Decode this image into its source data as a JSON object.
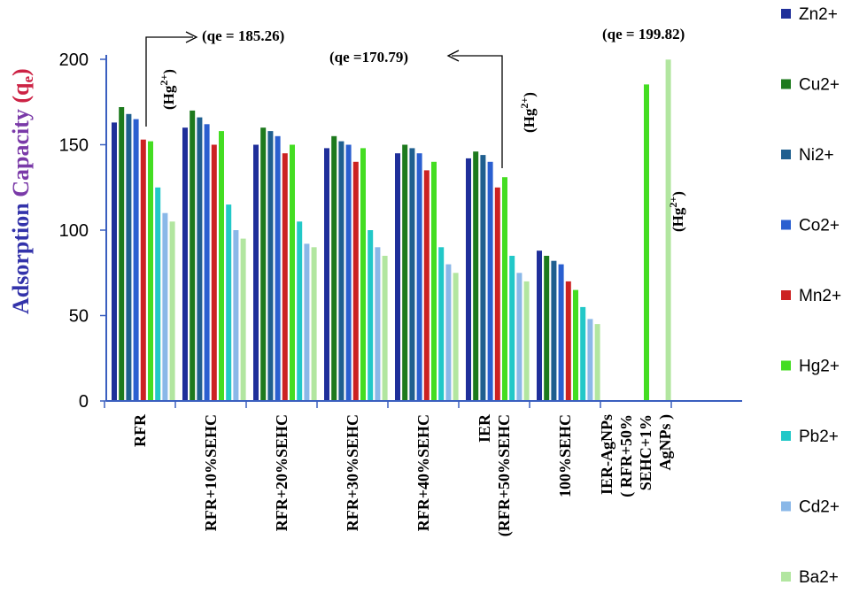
{
  "chart_data": {
    "type": "bar",
    "ylabel_parts": [
      "Adsorption ",
      "Capacity",
      " (q",
      "e",
      ")"
    ],
    "ylabel_colors": [
      "#3333aa",
      "#7a3aa8",
      "#cc2244",
      "#cc2244",
      "#cc2244"
    ],
    "ylim": [
      0,
      200
    ],
    "yticks": [
      0,
      50,
      100,
      150,
      200
    ],
    "grid": false,
    "legend_position": "right",
    "categories": [
      [
        "RFR"
      ],
      [
        "RFR+10%SEHC"
      ],
      [
        "RFR+20%SEHC"
      ],
      [
        "RFR+30%SEHC"
      ],
      [
        "RFR+40%SEHC"
      ],
      [
        "IER",
        "(RFR+50%SEHC"
      ],
      [
        "100%SEHC"
      ],
      [
        "IER-AgNPs",
        "( RFR+50%",
        "SEHC+1%",
        "AgNPs )"
      ]
    ],
    "series": [
      {
        "name": "Zn2+",
        "color": "#1f2f9a",
        "values": [
          163,
          160,
          150,
          148,
          145,
          142,
          88,
          0
        ]
      },
      {
        "name": "Cu2+",
        "color": "#1d7a1d",
        "values": [
          172,
          170,
          160,
          155,
          150,
          146,
          85,
          0
        ]
      },
      {
        "name": "Ni2+",
        "color": "#1f5f8f",
        "values": [
          168,
          166,
          158,
          152,
          148,
          144,
          82,
          0
        ]
      },
      {
        "name": "Co2+",
        "color": "#2a5fd0",
        "values": [
          165,
          162,
          155,
          150,
          145,
          140,
          80,
          0
        ]
      },
      {
        "name": "Mn2+",
        "color": "#cc2222",
        "values": [
          153,
          150,
          145,
          140,
          135,
          125,
          70,
          0
        ]
      },
      {
        "name": "Hg2+",
        "color": "#44dd22",
        "values": [
          152,
          158,
          150,
          148,
          140,
          131,
          65,
          185.26
        ]
      },
      {
        "name": "Pb2+",
        "color": "#22c8c8",
        "values": [
          125,
          115,
          105,
          100,
          90,
          85,
          55,
          0
        ]
      },
      {
        "name": "Cd2+",
        "color": "#8ab8e8",
        "values": [
          110,
          100,
          92,
          90,
          80,
          75,
          48,
          0
        ]
      },
      {
        "name": "Ba2+",
        "color": "#b2e6a0",
        "values": [
          105,
          95,
          90,
          85,
          75,
          70,
          45,
          199.82
        ]
      }
    ],
    "annotations": [
      {
        "text": "(qe = 185.26)"
      },
      {
        "text": "(qe =170.79)"
      },
      {
        "text": "(qe = 199.82)"
      }
    ],
    "hg_label": [
      "(Hg",
      "2+",
      ")"
    ]
  }
}
